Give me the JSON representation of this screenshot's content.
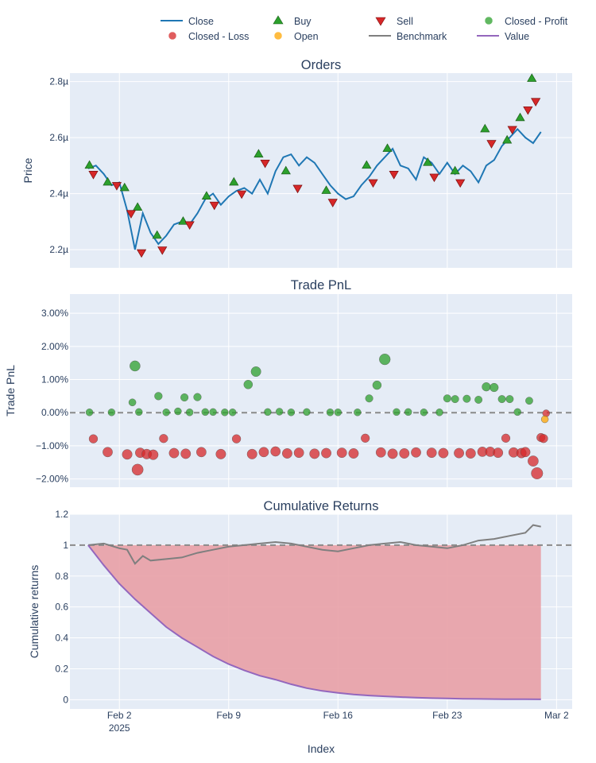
{
  "legend": [
    {
      "label": "Close",
      "kind": "line",
      "color": "#1f77b4"
    },
    {
      "label": "Buy",
      "kind": "triangle-up",
      "color": "#2ca02c"
    },
    {
      "label": "Sell",
      "kind": "triangle-down",
      "color": "#d62728"
    },
    {
      "label": "Closed - Profit",
      "kind": "circle",
      "color": "#2ca02c"
    },
    {
      "label": "Closed - Loss",
      "kind": "circle",
      "color": "#d62728"
    },
    {
      "label": "Open",
      "kind": "circle",
      "color": "#ffa500"
    },
    {
      "label": "Benchmark",
      "kind": "line",
      "color": "#7f7f7f"
    },
    {
      "label": "Value",
      "kind": "line",
      "color": "#9467bd"
    }
  ],
  "xaxis": {
    "title": "Index",
    "ticks": [
      {
        "x": "2025-02-02",
        "label": "Feb 2",
        "sublabel": "2025"
      },
      {
        "x": "2025-02-09",
        "label": "Feb 9",
        "sublabel": ""
      },
      {
        "x": "2025-02-16",
        "label": "Feb 16",
        "sublabel": ""
      },
      {
        "x": "2025-02-23",
        "label": "Feb 23",
        "sublabel": ""
      },
      {
        "x": "2025-03-02",
        "label": "Mar 2",
        "sublabel": ""
      }
    ],
    "range": [
      "2025-01-29 20:00",
      "2025-03-03 00:00"
    ]
  },
  "chart_data": [
    {
      "type": "line",
      "title": "Orders",
      "ylabel": "Price",
      "yticks": [
        {
          "y": 2.2,
          "label": "2.2µ"
        },
        {
          "y": 2.4,
          "label": "2.4µ"
        },
        {
          "y": 2.6,
          "label": "2.6µ"
        },
        {
          "y": 2.8,
          "label": "2.8µ"
        }
      ],
      "ylim": [
        2.135,
        2.83
      ],
      "series": [
        {
          "name": "Close",
          "color": "#1f77b4",
          "x": [
            "2025-01-31 00:00",
            "2025-01-31 12:00",
            "2025-02-01 00:00",
            "2025-02-01 12:00",
            "2025-02-02 00:00",
            "2025-02-02 12:00",
            "2025-02-03 00:00",
            "2025-02-03 12:00",
            "2025-02-04 00:00",
            "2025-02-04 12:00",
            "2025-02-05 00:00",
            "2025-02-05 12:00",
            "2025-02-06 00:00",
            "2025-02-06 12:00",
            "2025-02-07 00:00",
            "2025-02-07 12:00",
            "2025-02-08 00:00",
            "2025-02-08 12:00",
            "2025-02-09 00:00",
            "2025-02-09 12:00",
            "2025-02-10 00:00",
            "2025-02-10 12:00",
            "2025-02-11 00:00",
            "2025-02-11 12:00",
            "2025-02-12 00:00",
            "2025-02-12 12:00",
            "2025-02-13 00:00",
            "2025-02-13 12:00",
            "2025-02-14 00:00",
            "2025-02-14 12:00",
            "2025-02-15 00:00",
            "2025-02-15 12:00",
            "2025-02-16 00:00",
            "2025-02-16 12:00",
            "2025-02-17 00:00",
            "2025-02-17 12:00",
            "2025-02-18 00:00",
            "2025-02-18 12:00",
            "2025-02-19 00:00",
            "2025-02-19 12:00",
            "2025-02-20 00:00",
            "2025-02-20 12:00",
            "2025-02-21 00:00",
            "2025-02-21 12:00",
            "2025-02-22 00:00",
            "2025-02-22 12:00",
            "2025-02-23 00:00",
            "2025-02-23 12:00",
            "2025-02-24 00:00",
            "2025-02-24 12:00",
            "2025-02-25 00:00",
            "2025-02-25 12:00",
            "2025-02-26 00:00",
            "2025-02-26 12:00",
            "2025-02-27 00:00",
            "2025-02-27 12:00",
            "2025-02-28 00:00",
            "2025-02-28 12:00",
            "2025-03-01 00:00"
          ],
          "y": [
            2.49,
            2.5,
            2.47,
            2.43,
            2.44,
            2.34,
            2.2,
            2.33,
            2.26,
            2.22,
            2.25,
            2.29,
            2.3,
            2.29,
            2.33,
            2.38,
            2.4,
            2.36,
            2.39,
            2.41,
            2.42,
            2.4,
            2.45,
            2.4,
            2.48,
            2.53,
            2.54,
            2.5,
            2.53,
            2.51,
            2.47,
            2.43,
            2.4,
            2.38,
            2.39,
            2.43,
            2.46,
            2.5,
            2.53,
            2.56,
            2.5,
            2.49,
            2.45,
            2.53,
            2.51,
            2.47,
            2.51,
            2.47,
            2.5,
            2.48,
            2.44,
            2.5,
            2.52,
            2.57,
            2.6,
            2.63,
            2.6,
            2.58,
            2.62
          ]
        },
        {
          "name": "Buy",
          "color": "#2ca02c",
          "marker": "triangle-up",
          "x": [
            "2025-01-31 02:00",
            "2025-02-01 06:00",
            "2025-02-02 08:00",
            "2025-02-03 04:00",
            "2025-02-04 10:00",
            "2025-02-06 02:00",
            "2025-02-07 14:00",
            "2025-02-09 08:00",
            "2025-02-10 22:00",
            "2025-02-12 16:00",
            "2025-02-15 06:00",
            "2025-02-17 20:00",
            "2025-02-19 04:00",
            "2025-02-21 18:00",
            "2025-02-23 12:00",
            "2025-02-25 10:00",
            "2025-02-26 20:00",
            "2025-02-27 16:00",
            "2025-02-28 10:00"
          ],
          "y": [
            2.5,
            2.44,
            2.42,
            2.35,
            2.25,
            2.3,
            2.39,
            2.44,
            2.54,
            2.48,
            2.41,
            2.5,
            2.56,
            2.51,
            2.48,
            2.63,
            2.59,
            2.67,
            2.81
          ]
        },
        {
          "name": "Sell",
          "color": "#d62728",
          "marker": "triangle-down",
          "x": [
            "2025-01-31 08:00",
            "2025-02-01 20:00",
            "2025-02-02 18:00",
            "2025-02-03 10:00",
            "2025-02-04 18:00",
            "2025-02-06 12:00",
            "2025-02-08 02:00",
            "2025-02-09 20:00",
            "2025-02-11 08:00",
            "2025-02-13 10:00",
            "2025-02-15 16:00",
            "2025-02-18 06:00",
            "2025-02-19 14:00",
            "2025-02-22 04:00",
            "2025-02-23 20:00",
            "2025-02-25 20:00",
            "2025-02-27 04:00",
            "2025-02-28 04:00",
            "2025-02-28 16:00"
          ],
          "y": [
            2.47,
            2.43,
            2.33,
            2.19,
            2.2,
            2.29,
            2.36,
            2.4,
            2.51,
            2.42,
            2.37,
            2.44,
            2.47,
            2.46,
            2.44,
            2.58,
            2.63,
            2.7,
            2.73
          ]
        }
      ]
    },
    {
      "type": "scatter",
      "title": "Trade PnL",
      "ylabel": "Trade PnL",
      "yticks": [
        {
          "y": -0.02,
          "label": "−2.00%"
        },
        {
          "y": -0.01,
          "label": "−1.00%"
        },
        {
          "y": 0,
          "label": "0.00%"
        },
        {
          "y": 0.01,
          "label": "1.00%"
        },
        {
          "y": 0.02,
          "label": "2.00%"
        },
        {
          "y": 0.03,
          "label": "3.00%"
        }
      ],
      "ylim": [
        -0.0225,
        0.0358
      ],
      "zero_line": 0,
      "series": [
        {
          "name": "Closed - Profit",
          "color": "#2ca02c",
          "x": [
            "2025-01-31 02:00",
            "2025-02-01 12:00",
            "2025-02-02 20:00",
            "2025-02-03 00:00",
            "2025-02-03 06:00",
            "2025-02-04 12:00",
            "2025-02-05 00:00",
            "2025-02-05 18:00",
            "2025-02-06 04:00",
            "2025-02-06 12:00",
            "2025-02-07 00:00",
            "2025-02-07 12:00",
            "2025-02-08 00:00",
            "2025-02-08 18:00",
            "2025-02-09 06:00",
            "2025-02-10 06:00",
            "2025-02-10 18:00",
            "2025-02-11 12:00",
            "2025-02-12 06:00",
            "2025-02-13 00:00",
            "2025-02-14 00:00",
            "2025-02-15 12:00",
            "2025-02-16 00:00",
            "2025-02-17 06:00",
            "2025-02-18 00:00",
            "2025-02-18 12:00",
            "2025-02-19 00:00",
            "2025-02-19 18:00",
            "2025-02-20 12:00",
            "2025-02-21 12:00",
            "2025-02-22 12:00",
            "2025-02-23 00:00",
            "2025-02-23 12:00",
            "2025-02-24 06:00",
            "2025-02-25 00:00",
            "2025-02-25 12:00",
            "2025-02-26 00:00",
            "2025-02-26 12:00",
            "2025-02-27 00:00",
            "2025-02-27 12:00",
            "2025-02-28 06:00"
          ],
          "y": [
            0.0001,
            0.0001,
            0.0031,
            0.0141,
            0.0002,
            0.005,
            0.0001,
            0.0004,
            0.0046,
            0.0001,
            0.0047,
            0.0002,
            0.0002,
            0.0001,
            0.0001,
            0.0085,
            0.0124,
            0.0002,
            0.0003,
            0.0001,
            0.0002,
            0.0001,
            0.0001,
            0.0001,
            0.0043,
            0.0083,
            0.0161,
            0.0002,
            0.0002,
            0.0001,
            0.0001,
            0.0043,
            0.0041,
            0.0042,
            0.0039,
            0.0078,
            0.0076,
            0.0041,
            0.0041,
            0.0002,
            0.0036
          ]
        },
        {
          "name": "Closed - Loss",
          "color": "#d62728",
          "x": [
            "2025-01-31 08:00",
            "2025-02-01 06:00",
            "2025-02-02 12:00",
            "2025-02-03 04:00",
            "2025-02-03 08:00",
            "2025-02-03 18:00",
            "2025-02-04 04:00",
            "2025-02-04 20:00",
            "2025-02-05 12:00",
            "2025-02-06 06:00",
            "2025-02-07 06:00",
            "2025-02-08 12:00",
            "2025-02-09 12:00",
            "2025-02-10 12:00",
            "2025-02-11 06:00",
            "2025-02-12 00:00",
            "2025-02-12 18:00",
            "2025-02-13 12:00",
            "2025-02-14 12:00",
            "2025-02-15 06:00",
            "2025-02-16 06:00",
            "2025-02-17 00:00",
            "2025-02-17 18:00",
            "2025-02-18 18:00",
            "2025-02-19 12:00",
            "2025-02-20 06:00",
            "2025-02-21 00:00",
            "2025-02-22 00:00",
            "2025-02-22 18:00",
            "2025-02-23 18:00",
            "2025-02-24 12:00",
            "2025-02-25 06:00",
            "2025-02-25 18:00",
            "2025-02-26 06:00",
            "2025-02-26 18:00",
            "2025-02-27 06:00",
            "2025-02-27 18:00",
            "2025-02-28 00:00",
            "2025-02-28 12:00",
            "2025-02-28 18:00",
            "2025-03-01 00:00",
            "2025-03-01 04:00",
            "2025-03-01 08:00"
          ],
          "y": [
            -0.0079,
            -0.0119,
            -0.0126,
            -0.0172,
            -0.0121,
            -0.0125,
            -0.0127,
            -0.0078,
            -0.0122,
            -0.0124,
            -0.0119,
            -0.0125,
            -0.0079,
            -0.0125,
            -0.0119,
            -0.0117,
            -0.0123,
            -0.0121,
            -0.0124,
            -0.0122,
            -0.0121,
            -0.0123,
            -0.0077,
            -0.012,
            -0.0124,
            -0.0123,
            -0.012,
            -0.0121,
            -0.0122,
            -0.0122,
            -0.0123,
            -0.0118,
            -0.0118,
            -0.0121,
            -0.0077,
            -0.012,
            -0.0122,
            -0.0119,
            -0.0146,
            -0.0183,
            -0.0075,
            -0.0078,
            -0.0002
          ]
        },
        {
          "name": "Open",
          "color": "#ffa500",
          "x": [
            "2025-03-01 06:00"
          ],
          "y": [
            -0.002
          ]
        }
      ]
    },
    {
      "type": "area",
      "title": "Cumulative Returns",
      "ylabel": "Cumulative returns",
      "yticks": [
        {
          "y": 0,
          "label": "0"
        },
        {
          "y": 0.2,
          "label": "0.2"
        },
        {
          "y": 0.4,
          "label": "0.4"
        },
        {
          "y": 0.6,
          "label": "0.6"
        },
        {
          "y": 0.8,
          "label": "0.8"
        },
        {
          "y": 1,
          "label": "1"
        },
        {
          "y": 1.2,
          "label": "1.2"
        }
      ],
      "ylim": [
        -0.06,
        1.2
      ],
      "baseline": 1,
      "series": [
        {
          "name": "Benchmark",
          "color": "#7f7f7f",
          "x": [
            "2025-01-31 00:00",
            "2025-02-01 00:00",
            "2025-02-02 00:00",
            "2025-02-02 12:00",
            "2025-02-03 00:00",
            "2025-02-03 12:00",
            "2025-02-04 00:00",
            "2025-02-05 00:00",
            "2025-02-06 00:00",
            "2025-02-07 00:00",
            "2025-02-08 00:00",
            "2025-02-09 00:00",
            "2025-02-10 00:00",
            "2025-02-11 00:00",
            "2025-02-12 00:00",
            "2025-02-13 00:00",
            "2025-02-14 00:00",
            "2025-02-15 00:00",
            "2025-02-16 00:00",
            "2025-02-17 00:00",
            "2025-02-18 00:00",
            "2025-02-19 00:00",
            "2025-02-20 00:00",
            "2025-02-21 00:00",
            "2025-02-22 00:00",
            "2025-02-23 00:00",
            "2025-02-24 00:00",
            "2025-02-25 00:00",
            "2025-02-26 00:00",
            "2025-02-27 00:00",
            "2025-02-28 00:00",
            "2025-02-28 12:00",
            "2025-03-01 00:00"
          ],
          "y": [
            1.0,
            1.01,
            0.98,
            0.97,
            0.88,
            0.93,
            0.9,
            0.91,
            0.92,
            0.95,
            0.97,
            0.99,
            1.0,
            1.01,
            1.02,
            1.01,
            0.99,
            0.97,
            0.96,
            0.98,
            1.0,
            1.01,
            1.02,
            1.0,
            0.99,
            0.98,
            1.0,
            1.03,
            1.04,
            1.06,
            1.08,
            1.13,
            1.12
          ]
        },
        {
          "name": "Value",
          "color": "#9467bd",
          "x": [
            "2025-01-31 00:00",
            "2025-02-01 00:00",
            "2025-02-02 00:00",
            "2025-02-03 00:00",
            "2025-02-04 00:00",
            "2025-02-05 00:00",
            "2025-02-06 00:00",
            "2025-02-07 00:00",
            "2025-02-08 00:00",
            "2025-02-09 00:00",
            "2025-02-10 00:00",
            "2025-02-11 00:00",
            "2025-02-12 00:00",
            "2025-02-13 00:00",
            "2025-02-14 00:00",
            "2025-02-15 00:00",
            "2025-02-16 00:00",
            "2025-02-17 00:00",
            "2025-02-18 00:00",
            "2025-02-19 00:00",
            "2025-02-20 00:00",
            "2025-02-21 00:00",
            "2025-02-22 00:00",
            "2025-02-23 00:00",
            "2025-02-24 00:00",
            "2025-02-25 00:00",
            "2025-02-26 00:00",
            "2025-02-27 00:00",
            "2025-02-28 00:00",
            "2025-03-01 00:00"
          ],
          "y": [
            1.0,
            0.87,
            0.75,
            0.65,
            0.56,
            0.47,
            0.4,
            0.34,
            0.28,
            0.23,
            0.19,
            0.155,
            0.13,
            0.1,
            0.075,
            0.057,
            0.044,
            0.034,
            0.027,
            0.022,
            0.017,
            0.013,
            0.01,
            0.008,
            0.006,
            0.005,
            0.004,
            0.003,
            0.0025,
            0.002
          ]
        }
      ],
      "fill": {
        "between": [
          "Value",
          "baseline"
        ],
        "color": "#e8a0a6"
      }
    }
  ]
}
